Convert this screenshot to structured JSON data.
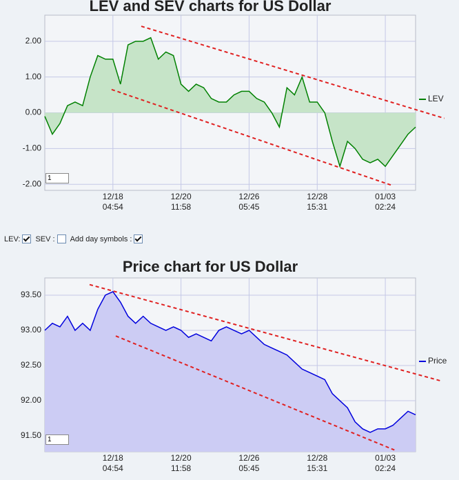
{
  "chart_data": [
    {
      "type": "area",
      "title": "LEV and SEV charts for US Dollar",
      "categories": [
        null,
        null,
        null,
        null,
        null,
        null,
        null,
        null,
        null,
        "12/18\n04:54",
        null,
        null,
        null,
        null,
        null,
        null,
        null,
        null,
        "12/20\n11:58",
        null,
        null,
        null,
        null,
        null,
        null,
        null,
        null,
        "12/26\n05:45",
        null,
        null,
        null,
        null,
        null,
        null,
        null,
        null,
        "12/28\n15:31",
        null,
        null,
        null,
        null,
        null,
        null,
        null,
        null,
        "01/03\n02:24",
        null,
        null,
        null,
        null
      ],
      "series": [
        {
          "name": "LEV",
          "color": "#008000",
          "fill": "#c6e4c8",
          "values": [
            -0.1,
            -0.6,
            -0.3,
            0.2,
            0.3,
            0.2,
            1.0,
            1.6,
            1.5,
            1.5,
            0.8,
            1.9,
            2.0,
            2.0,
            2.1,
            1.5,
            1.7,
            1.6,
            0.8,
            0.6,
            0.8,
            0.7,
            0.4,
            0.3,
            0.3,
            0.5,
            0.6,
            0.6,
            0.4,
            0.3,
            0.0,
            -0.4,
            0.7,
            0.5,
            1.0,
            0.3,
            0.3,
            0.0,
            -0.8,
            -1.5,
            -0.8,
            -1.0,
            -1.3,
            -1.4,
            -1.3,
            -1.5,
            -1.2,
            -0.9,
            -0.6,
            -0.4
          ]
        }
      ],
      "ylim": [
        -2.17,
        2.73
      ],
      "yticks": [
        {
          "value": -2,
          "label": "-2.00"
        },
        {
          "value": -1,
          "label": "-1.00"
        },
        {
          "value": 0,
          "label": "0.00"
        },
        {
          "value": 1,
          "label": "1.00"
        },
        {
          "value": 2,
          "label": "2.00"
        }
      ],
      "grid": true,
      "legend": "right",
      "input": "1",
      "trend_lines": [
        {
          "x": [
            12.75,
            52.8
          ],
          "y": [
            2.42,
            -0.155
          ]
        },
        {
          "x": [
            8.83,
            46.0
          ],
          "y": [
            0.65,
            -2.04
          ]
        }
      ]
    },
    {
      "type": "area",
      "title": "Price chart for US Dollar",
      "categories": [
        null,
        null,
        null,
        null,
        null,
        null,
        null,
        null,
        null,
        "12/18\n04:54",
        null,
        null,
        null,
        null,
        null,
        null,
        null,
        null,
        "12/20\n11:58",
        null,
        null,
        null,
        null,
        null,
        null,
        null,
        null,
        "12/26\n05:45",
        null,
        null,
        null,
        null,
        null,
        null,
        null,
        null,
        "12/28\n15:31",
        null,
        null,
        null,
        null,
        null,
        null,
        null,
        null,
        "01/03\n02:24",
        null,
        null,
        null,
        null
      ],
      "series": [
        {
          "name": "Price",
          "color": "#0000dd",
          "fill": "#ccccf4",
          "values": [
            93.0,
            93.1,
            93.05,
            93.2,
            93.0,
            93.1,
            93.0,
            93.3,
            93.5,
            93.55,
            93.4,
            93.2,
            93.1,
            93.2,
            93.1,
            93.05,
            93.0,
            93.05,
            93.0,
            92.9,
            92.95,
            92.9,
            92.85,
            93.0,
            93.05,
            93.0,
            92.95,
            93.0,
            92.9,
            92.8,
            92.75,
            92.7,
            92.65,
            92.55,
            92.45,
            92.4,
            92.35,
            92.3,
            92.1,
            92.0,
            91.9,
            91.7,
            91.6,
            91.55,
            91.6,
            91.6,
            91.65,
            91.75,
            91.85,
            91.8
          ]
        }
      ],
      "ylim": [
        91.275,
        93.745
      ],
      "yticks": [
        {
          "value": 91.5,
          "label": "91.50"
        },
        {
          "value": 92,
          "label": "92.00"
        },
        {
          "value": 92.5,
          "label": "92.50"
        },
        {
          "value": 93,
          "label": "93.00"
        },
        {
          "value": 93.5,
          "label": "93.50"
        }
      ],
      "grid": true,
      "legend": "right",
      "input": "1",
      "trend_lines": [
        {
          "x": [
            5.92,
            52.4
          ],
          "y": [
            93.65,
            92.28
          ]
        },
        {
          "x": [
            9.38,
            46.2
          ],
          "y": [
            92.92,
            91.3
          ]
        }
      ]
    }
  ],
  "controls": [
    {
      "label": "LEV:",
      "checked": true
    },
    {
      "label": "SEV :",
      "checked": false
    },
    {
      "label": "Add day symbols :",
      "checked": true
    }
  ]
}
